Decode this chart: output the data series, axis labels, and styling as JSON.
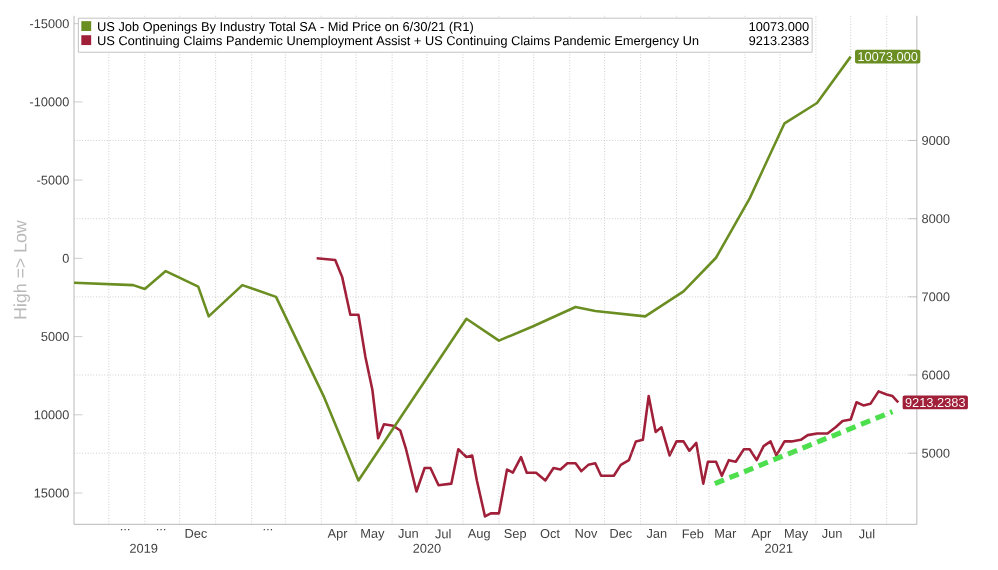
{
  "chart_data": {
    "type": "line",
    "ylabel": "High => Low",
    "series": [
      {
        "name": "US Job Openings By Industry Total SA - Mid Price on 6/30/21 (R1)",
        "color": "#6b8e23",
        "axis": "y2",
        "x": [
          "2019-09-01",
          "2019-10-22",
          "2019-11-01",
          "2019-11-19",
          "2019-12-17",
          "2019-12-26",
          "2020-01-24",
          "2020-02-22",
          "2020-04-03",
          "2020-05-03",
          "2020-08-04",
          "2020-09-01",
          "2020-09-30",
          "2020-11-06",
          "2020-11-23",
          "2021-01-05",
          "2021-02-07",
          "2021-03-07",
          "2021-04-05",
          "2021-05-05",
          "2021-06-02",
          "2021-07-01"
        ],
        "values": [
          7180,
          7150,
          7100,
          7330,
          7130,
          6750,
          7150,
          7000,
          5730,
          4650,
          6720,
          6440,
          6620,
          6870,
          6820,
          6750,
          7070,
          7500,
          8260,
          9220,
          9480,
          10073
        ],
        "value_labels": [
          null,
          null,
          null,
          null,
          null,
          null,
          null,
          null,
          null,
          null,
          null,
          null,
          null,
          null,
          null,
          null,
          null,
          null,
          null,
          null,
          null,
          "10073.000"
        ]
      },
      {
        "name": "US Continuing Claims Pandemic Unemployment Assist + US Continuing Claims Pandemic Emergency Un",
        "color": "#a0203a",
        "x": [
          "2020-03-28",
          "2020-04-13",
          "2020-04-19",
          "2020-04-26",
          "2020-05-03",
          "2020-05-09",
          "2020-05-15",
          "2020-05-20",
          "2020-05-25",
          "2020-06-02",
          "2020-06-08",
          "2020-06-13",
          "2020-06-22",
          "2020-06-29",
          "2020-07-04",
          "2020-07-11",
          "2020-07-22",
          "2020-07-28",
          "2020-08-04",
          "2020-08-09",
          "2020-08-13",
          "2020-08-20",
          "2020-08-25",
          "2020-09-01",
          "2020-09-08",
          "2020-09-13",
          "2020-09-20",
          "2020-09-25",
          "2020-10-03",
          "2020-10-11",
          "2020-10-18",
          "2020-10-24",
          "2020-10-30",
          "2020-11-06",
          "2020-11-11",
          "2020-11-17",
          "2020-11-23",
          "2020-11-28",
          "2020-12-09",
          "2020-12-15",
          "2020-12-22",
          "2020-12-28",
          "2021-01-03",
          "2021-01-08",
          "2021-01-14",
          "2021-01-19",
          "2021-01-26",
          "2021-02-01",
          "2021-02-07",
          "2021-02-12",
          "2021-02-18",
          "2021-02-24",
          "2021-02-28",
          "2021-03-07",
          "2021-03-12",
          "2021-03-18",
          "2021-03-24",
          "2021-03-31",
          "2021-04-05",
          "2021-04-11",
          "2021-04-17",
          "2021-04-23",
          "2021-04-28",
          "2021-05-05",
          "2021-05-11",
          "2021-05-19",
          "2021-05-25",
          "2021-06-02",
          "2021-06-11",
          "2021-06-18",
          "2021-06-24",
          "2021-07-01",
          "2021-07-06",
          "2021-07-12",
          "2021-07-18",
          "2021-07-25",
          "2021-08-01",
          "2021-08-06",
          "2021-08-11"
        ],
        "values": [
          0,
          100,
          1200,
          3600,
          3600,
          6300,
          8400,
          11500,
          10600,
          10700,
          11000,
          12200,
          14900,
          13400,
          13400,
          14500,
          14400,
          12200,
          12700,
          12600,
          14200,
          16500,
          16300,
          16300,
          13500,
          13700,
          12700,
          13700,
          13700,
          14200,
          13400,
          13500,
          13100,
          13100,
          13600,
          13200,
          13100,
          13900,
          13900,
          13200,
          12900,
          11700,
          11600,
          8800,
          11100,
          10800,
          12600,
          11700,
          11700,
          12300,
          11800,
          14400,
          13000,
          13000,
          13900,
          12900,
          13000,
          12200,
          12200,
          12900,
          12000,
          11700,
          12600,
          11700,
          11700,
          11600,
          11300,
          11200,
          11200,
          10800,
          10400,
          10300,
          9200,
          9400,
          9300,
          8500,
          8700,
          8800,
          9213.2383
        ],
        "value_labels": [
          null,
          null,
          null,
          null,
          null,
          null,
          null,
          null,
          null,
          null,
          null,
          null,
          null,
          null,
          null,
          null,
          null,
          null,
          null,
          null,
          null,
          null,
          null,
          null,
          null,
          null,
          null,
          null,
          null,
          null,
          null,
          null,
          null,
          null,
          null,
          null,
          null,
          null,
          null,
          null,
          null,
          null,
          null,
          null,
          null,
          null,
          null,
          null,
          null,
          null,
          null,
          null,
          null,
          null,
          null,
          null,
          null,
          null,
          null,
          null,
          null,
          null,
          null,
          null,
          null,
          null,
          null,
          null,
          null,
          null,
          null,
          null,
          null,
          null,
          null,
          null,
          null,
          null,
          "9213.2383"
        ]
      },
      {
        "type": "line",
        "color": "#4ddf4d",
        "line_style": "dashed",
        "x": [
          "2021-03-06",
          "2021-08-06"
        ],
        "values": [
          14400,
          9800
        ]
      }
    ],
    "annotations": [
      "10073.000",
      "9213.2383"
    ],
    "xlim": [
      "2019-09-01",
      "2021-08-27"
    ],
    "xticks": [
      {
        "value": "2019-10-15",
        "label": "..."
      },
      {
        "value": "2019-11-15",
        "label": "..."
      },
      {
        "value": "2019-12-15",
        "label": "Dec"
      },
      {
        "value": "2020-02-15",
        "label": "..."
      },
      {
        "value": "2020-04-15",
        "label": "Apr"
      },
      {
        "value": "2020-05-15",
        "label": "May"
      },
      {
        "value": "2020-06-15",
        "label": "Jun"
      },
      {
        "value": "2020-07-15",
        "label": "Jul"
      },
      {
        "value": "2020-08-15",
        "label": "Aug"
      },
      {
        "value": "2020-09-15",
        "label": "Sep"
      },
      {
        "value": "2020-10-15",
        "label": "Oct"
      },
      {
        "value": "2020-11-15",
        "label": "Nov"
      },
      {
        "value": "2020-12-15",
        "label": "Dec"
      },
      {
        "value": "2021-01-15",
        "label": "Jan"
      },
      {
        "value": "2021-02-15",
        "label": "Feb"
      },
      {
        "value": "2021-03-15",
        "label": "Mar"
      },
      {
        "value": "2021-04-15",
        "label": "Apr"
      },
      {
        "value": "2021-05-15",
        "label": "May"
      },
      {
        "value": "2021-06-15",
        "label": "Jun"
      },
      {
        "value": "2021-07-15",
        "label": "Jul"
      },
      {
        "value": "2019-10-01",
        "label": null
      },
      {
        "value": "2019-11-01",
        "label": null
      },
      {
        "value": "2019-12-01",
        "label": null
      },
      {
        "value": "2020-01-01",
        "label": null
      },
      {
        "value": "2020-02-01",
        "label": null
      },
      {
        "value": "2020-03-01",
        "label": null
      },
      {
        "value": "2020-04-01",
        "label": null
      },
      {
        "value": "2020-05-01",
        "label": null
      },
      {
        "value": "2020-06-01",
        "label": null
      },
      {
        "value": "2020-07-01",
        "label": null
      },
      {
        "value": "2020-08-01",
        "label": null
      },
      {
        "value": "2020-09-01",
        "label": null
      },
      {
        "value": "2020-10-01",
        "label": null
      },
      {
        "value": "2020-11-01",
        "label": null
      },
      {
        "value": "2020-12-01",
        "label": null
      },
      {
        "value": "2021-01-01",
        "label": null
      },
      {
        "value": "2021-02-01",
        "label": null
      },
      {
        "value": "2021-03-01",
        "label": null
      },
      {
        "value": "2021-04-01",
        "label": null
      },
      {
        "value": "2021-05-01",
        "label": null
      },
      {
        "value": "2021-06-01",
        "label": null
      },
      {
        "value": "2021-07-01",
        "label": null
      },
      {
        "value": "2021-08-01",
        "label": null
      }
    ],
    "x2lim": [
      "2019-09-01",
      "2021-08-27"
    ],
    "x2ticks": [
      {
        "value": "2019-10-31",
        "label": "2019"
      },
      {
        "value": "2020-07-01",
        "label": "2020"
      },
      {
        "value": "2021-04-30",
        "label": "2021"
      }
    ],
    "ylim": [
      17000,
      -15500
    ],
    "yticks": [
      -15000,
      -10000,
      -5000,
      0,
      5000,
      10000,
      15000
    ],
    "y2lim": [
      4090,
      10595
    ],
    "y2ticks": [
      5000,
      6000,
      7000,
      8000,
      9000
    ],
    "grid": true,
    "legend": "top left"
  }
}
